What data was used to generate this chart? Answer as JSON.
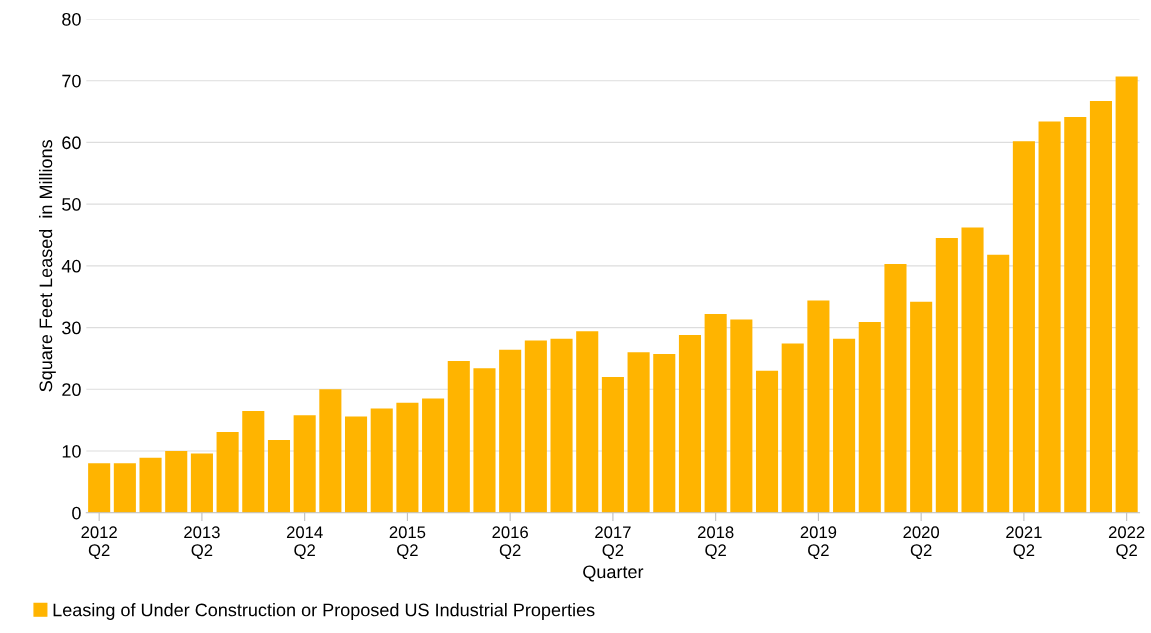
{
  "chart_data": {
    "type": "bar",
    "xlabel": "Quarter",
    "ylabel": "Square Feet Leased  in Millions",
    "categories": [
      "2012\nQ2",
      null,
      null,
      null,
      "2013\nQ2",
      null,
      null,
      null,
      "2014\nQ2",
      null,
      null,
      null,
      "2015\nQ2",
      null,
      null,
      null,
      "2016\nQ2",
      null,
      null,
      null,
      "2017\nQ2",
      null,
      null,
      null,
      "2018\nQ2",
      null,
      null,
      null,
      "2019\nQ2",
      null,
      null,
      null,
      "2020\nQ2",
      null,
      null,
      null,
      "2021\nQ2",
      null,
      null,
      null,
      "2022\nQ2"
    ],
    "series": [
      {
        "name": "Leasing of Under Construction or Proposed US Industrial Properties",
        "color": "#ffb400",
        "values": [
          8.0,
          8.0,
          8.9,
          10.0,
          9.6,
          13.1,
          16.5,
          11.8,
          15.8,
          20.0,
          15.6,
          16.9,
          17.8,
          18.5,
          24.6,
          23.4,
          26.4,
          27.9,
          28.2,
          29.4,
          22.0,
          26.0,
          25.7,
          28.8,
          32.2,
          31.3,
          23.0,
          27.4,
          34.4,
          28.2,
          30.9,
          40.3,
          34.2,
          44.5,
          46.2,
          41.8,
          60.2,
          63.4,
          64.1,
          66.7,
          70.7
        ]
      }
    ],
    "ylim": [
      0,
      80
    ],
    "yticks": [
      0,
      10,
      20,
      30,
      40,
      50,
      60,
      70,
      80
    ],
    "grid": "y",
    "legend": "bottom left"
  }
}
